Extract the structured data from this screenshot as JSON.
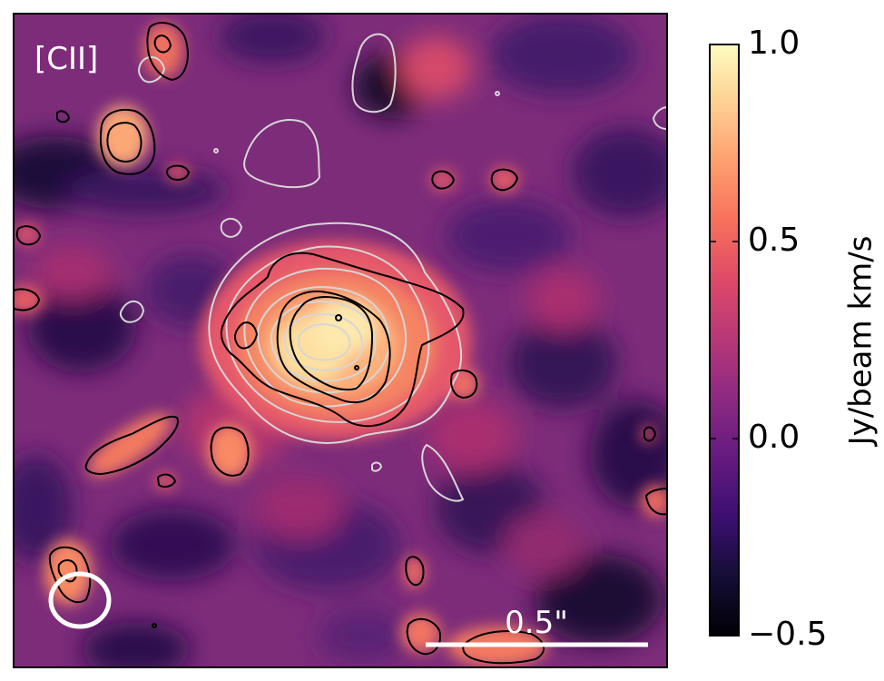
{
  "chart_data": {
    "type": "heatmap",
    "panel_label": "[CII]",
    "colormap": "magma",
    "colorbar": {
      "label": "Jy/beam km/s",
      "range": [
        -0.5,
        1.0
      ],
      "ticks": [
        {
          "value": 1.0,
          "label": "1.0"
        },
        {
          "value": 0.5,
          "label": "0.5"
        },
        {
          "value": 0.0,
          "label": "0.0"
        },
        {
          "value": -0.5,
          "label": "−0.5"
        }
      ]
    },
    "scale_bar": {
      "label": "0.5\"",
      "length_arcsec": 0.5,
      "color": "#ffffff"
    },
    "beam": {
      "shape": "ellipse",
      "color": "#ffffff"
    },
    "contours": {
      "emission": {
        "color": "#000000",
        "description": "[CII] line emission levels"
      },
      "overlay": {
        "color": "#d0d0d0",
        "description": "comparison emission levels"
      }
    },
    "emission_peak": {
      "value": 0.92,
      "location": "center"
    }
  }
}
